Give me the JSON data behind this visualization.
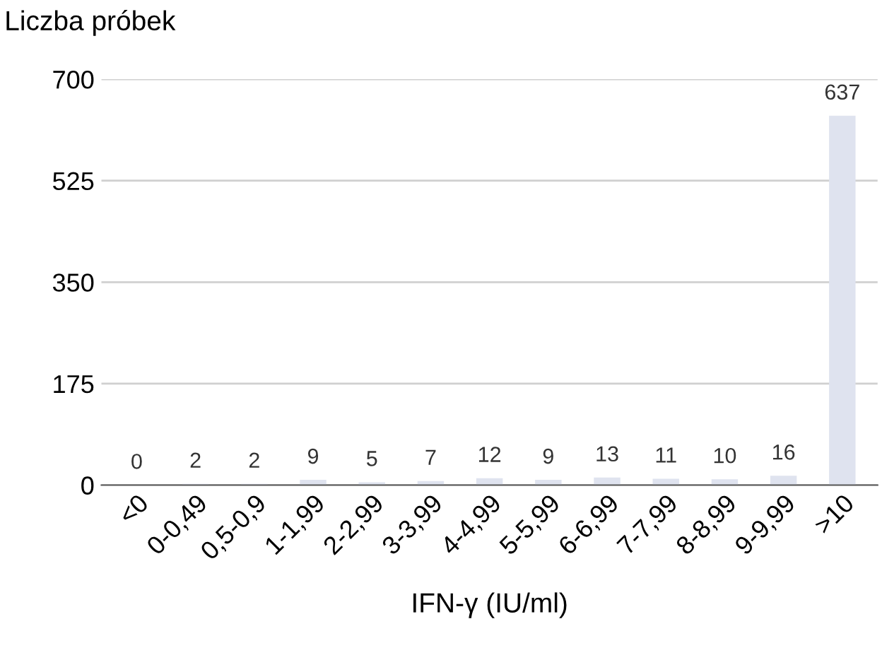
{
  "chart_data": {
    "type": "bar",
    "ylabel": "Liczba próbek",
    "xlabel": "IFN-γ (IU/ml)",
    "categories": [
      "<0",
      "0-0,49",
      "0,5-0,9",
      "1-1,99",
      "2-2,99",
      "3-3,99",
      "4-4,99",
      "5-5,99",
      "6-6,99",
      "7-7,99",
      "8-8,99",
      "9-9,99",
      ">10"
    ],
    "values": [
      0,
      2,
      2,
      9,
      5,
      7,
      12,
      9,
      13,
      11,
      10,
      16,
      637
    ],
    "color": "#dfe3ef",
    "ylim": [
      0,
      700
    ],
    "yticks": [
      0,
      175,
      350,
      525,
      700
    ],
    "grid": "y",
    "data_labels": true
  }
}
